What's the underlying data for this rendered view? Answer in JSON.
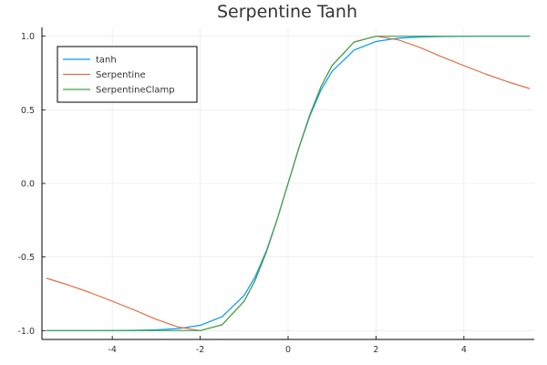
{
  "chart_data": {
    "type": "line",
    "title": "Serpentine Tanh",
    "xlabel": "",
    "ylabel": "",
    "xlim": [
      -5.6,
      5.6
    ],
    "ylim": [
      -1.06,
      1.06
    ],
    "x_ticks": [
      -4,
      -2,
      0,
      2,
      4
    ],
    "y_ticks": [
      -1.0,
      -0.5,
      0.0,
      0.5,
      1.0
    ],
    "x_tick_labels": [
      "-4",
      "-2",
      "0",
      "2",
      "4"
    ],
    "y_tick_labels": [
      "-1.0",
      "-0.5",
      "0.0",
      "0.5",
      "1.0"
    ],
    "grid": true,
    "legend_position": "top-left",
    "series": [
      {
        "name": "tanh",
        "color": "#009AFA",
        "x": [
          -5.5,
          -5.0,
          -4.5,
          -4.0,
          -3.5,
          -3.0,
          -2.5,
          -2.0,
          -1.5,
          -1.0,
          -0.75,
          -0.5,
          -0.25,
          0.0,
          0.25,
          0.5,
          0.75,
          1.0,
          1.5,
          2.0,
          2.5,
          3.0,
          3.5,
          4.0,
          4.5,
          5.0,
          5.5
        ],
        "y": [
          -1.0,
          -0.9999,
          -0.9998,
          -0.9993,
          -0.9982,
          -0.9951,
          -0.9866,
          -0.964,
          -0.9051,
          -0.7616,
          -0.6351,
          -0.4621,
          -0.2449,
          0.0,
          0.2449,
          0.4621,
          0.6351,
          0.7616,
          0.9051,
          0.964,
          0.9866,
          0.9951,
          0.9982,
          0.9993,
          0.9998,
          0.9999,
          1.0
        ]
      },
      {
        "name": "Serpentine",
        "color": "#E36F47",
        "x": [
          -5.5,
          -5.0,
          -4.5,
          -4.0,
          -3.5,
          -3.0,
          -2.5,
          -2.0,
          -1.5,
          -1.0,
          -0.75,
          -0.5,
          -0.25,
          0.0,
          0.25,
          0.5,
          0.75,
          1.0,
          1.5,
          2.0,
          2.5,
          3.0,
          3.5,
          4.0,
          4.5,
          5.0,
          5.5
        ],
        "y": [
          -0.6439,
          -0.6897,
          -0.7423,
          -0.8,
          -0.8596,
          -0.923,
          -0.9756,
          -1.0,
          -0.96,
          -0.8,
          -0.6585,
          -0.4706,
          -0.2462,
          0.0,
          0.2462,
          0.4706,
          0.6585,
          0.8,
          0.96,
          1.0,
          0.9756,
          0.923,
          0.8596,
          0.8,
          0.7423,
          0.6897,
          0.6439
        ]
      },
      {
        "name": "SerpentineClamp",
        "color": "#3EA44E",
        "x": [
          -5.5,
          -5.0,
          -4.5,
          -4.0,
          -3.5,
          -3.0,
          -2.5,
          -2.0,
          -1.5,
          -1.0,
          -0.75,
          -0.5,
          -0.25,
          0.0,
          0.25,
          0.5,
          0.75,
          1.0,
          1.5,
          2.0,
          2.5,
          3.0,
          3.5,
          4.0,
          4.5,
          5.0,
          5.5
        ],
        "y": [
          -1.0,
          -1.0,
          -1.0,
          -1.0,
          -1.0,
          -1.0,
          -1.0,
          -1.0,
          -0.96,
          -0.8,
          -0.6585,
          -0.4706,
          -0.2462,
          0.0,
          0.2462,
          0.4706,
          0.6585,
          0.8,
          0.96,
          1.0,
          1.0,
          1.0,
          1.0,
          1.0,
          1.0,
          1.0,
          1.0
        ]
      }
    ]
  }
}
